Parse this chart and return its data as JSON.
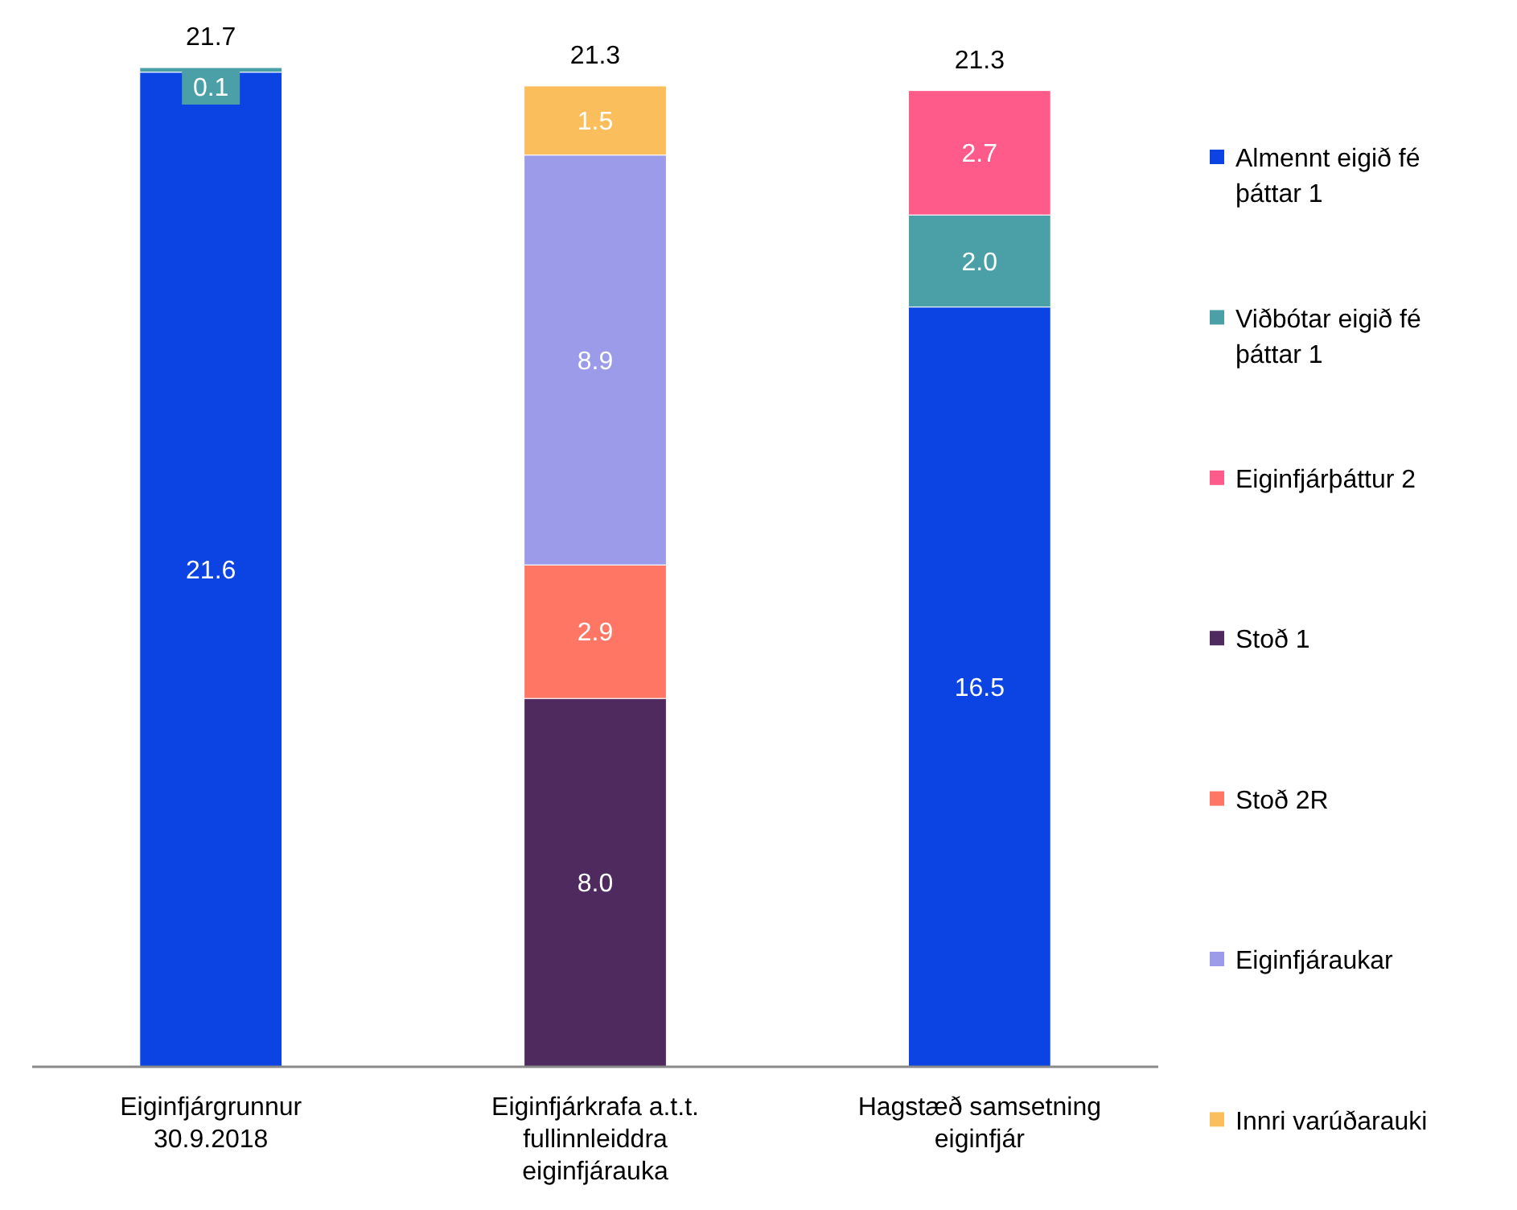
{
  "chart_data": {
    "type": "bar",
    "stacked": true,
    "categories": [
      "Eiginfjárgrunnur 30.9.2018",
      "Eiginfjárkrafa a.t.t. fullinnleiddra eiginfjárauka",
      "Hagstæð samsetning eiginfjár"
    ],
    "series": [
      {
        "name": "Almennt eigið fé þáttar 1",
        "color": "#0b44e2",
        "values": [
          21.6,
          null,
          16.5
        ],
        "value_labels": [
          "21.6",
          null,
          "16.5"
        ]
      },
      {
        "name": "Viðbótar eigið fé þáttar 1",
        "color": "#4ba0a8",
        "values": [
          0.1,
          null,
          2.0
        ],
        "value_labels": [
          "0.1",
          null,
          "2.0"
        ]
      },
      {
        "name": "Eiginfjárþáttur 2",
        "color": "#fe5a8a",
        "values": [
          null,
          null,
          2.7
        ],
        "value_labels": [
          null,
          null,
          "2.7"
        ]
      },
      {
        "name": "Stoð 1",
        "color": "#4f2a5e",
        "values": [
          null,
          8.0,
          null
        ],
        "value_labels": [
          null,
          "8.0",
          null
        ]
      },
      {
        "name": "Stoð 2R",
        "color": "#ff7764",
        "values": [
          null,
          2.9,
          null
        ],
        "value_labels": [
          null,
          "2.9",
          null
        ]
      },
      {
        "name": "Eiginfjáraukar",
        "color": "#9b9be9",
        "values": [
          null,
          8.9,
          null
        ],
        "value_labels": [
          null,
          "8.9",
          null
        ]
      },
      {
        "name": "Innri varúðarauki",
        "color": "#fbbe5c",
        "values": [
          null,
          1.5,
          null
        ],
        "value_labels": [
          null,
          "1.5",
          null
        ]
      }
    ],
    "totals": [
      "21.7",
      "21.3",
      "21.3"
    ],
    "legend": "right"
  }
}
